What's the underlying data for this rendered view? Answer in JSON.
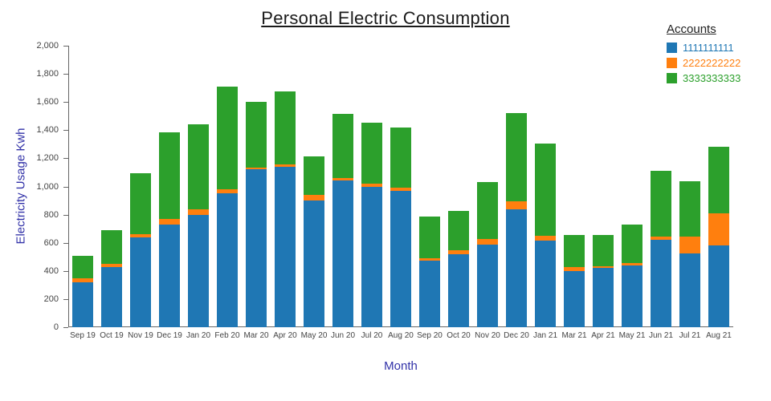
{
  "chart_data": {
    "type": "bar",
    "stacked": true,
    "title": "Personal Electric Consumption",
    "xlabel": "Month",
    "ylabel": "Electricity Usage Kwh",
    "ylim": [
      0,
      2000
    ],
    "ytick_step": 200,
    "grid": false,
    "legend_position": "top-right",
    "legend_title": "Accounts",
    "axis_title_color": "#3232a8",
    "title_color": "#1a1a1a",
    "tick_color": "#444444",
    "categories": [
      "Sep 19",
      "Oct 19",
      "Nov 19",
      "Dec 19",
      "Jan 20",
      "Feb 20",
      "Mar 20",
      "Apr 20",
      "May 20",
      "Jun 20",
      "Jul 20",
      "Aug 20",
      "Sep 20",
      "Oct 20",
      "Nov 20",
      "Dec 20",
      "Jan 21",
      "Mar 21",
      "Apr 21",
      "May 21",
      "Jun 21",
      "Jul 21",
      "Aug 21"
    ],
    "series": [
      {
        "name": "1111111111",
        "color": "#1f77b4",
        "values": [
          320,
          430,
          640,
          730,
          800,
          950,
          1125,
          1140,
          900,
          1040,
          1000,
          970,
          475,
          520,
          585,
          840,
          615,
          400,
          420,
          440,
          620,
          525,
          580
        ]
      },
      {
        "name": "2222222222",
        "color": "#ff7f0e",
        "values": [
          25,
          20,
          20,
          40,
          40,
          30,
          10,
          15,
          40,
          20,
          20,
          20,
          15,
          30,
          40,
          55,
          35,
          30,
          15,
          15,
          25,
          120,
          230
        ]
      },
      {
        "name": "3333333333",
        "color": "#2ca02c",
        "values": [
          165,
          240,
          435,
          615,
          600,
          730,
          465,
          520,
          275,
          455,
          435,
          430,
          295,
          275,
          405,
          625,
          655,
          225,
          220,
          275,
          465,
          395,
          475
        ]
      }
    ]
  }
}
